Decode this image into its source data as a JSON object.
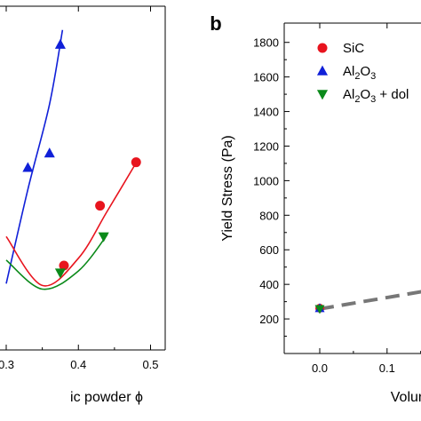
{
  "chart_data": [
    {
      "type": "scatter",
      "panel": "",
      "title": "",
      "xlabel": "ic powder ϕ",
      "ylabel": "",
      "x_ticks": [
        "0.3",
        "0.4",
        "0.5"
      ],
      "series": [
        {
          "name": "SiC",
          "color": "#e8141e",
          "marker": "circle",
          "points": [
            [
              0.38,
              260
            ],
            [
              0.43,
              590
            ],
            [
              0.48,
              830
            ]
          ]
        },
        {
          "name": "Al2O3",
          "color": "#1020d8",
          "marker": "triangle-up",
          "points": [
            [
              0.33,
              800
            ],
            [
              0.36,
              880
            ],
            [
              0.375,
              1480
            ]
          ]
        },
        {
          "name": "Al2O3 + dol",
          "color": "#0b8a1a",
          "marker": "triangle-down",
          "points": [
            [
              0.375,
              220
            ],
            [
              0.435,
              420
            ]
          ]
        }
      ]
    },
    {
      "type": "line",
      "panel": "b",
      "title": "",
      "xlabel": "Volum",
      "ylabel": "Yield Stress (Pa)",
      "ylim": [
        0,
        1900
      ],
      "y_ticks": [
        200,
        400,
        600,
        800,
        1000,
        1200,
        1400,
        1600,
        1800
      ],
      "x_ticks": [
        "0.0",
        "0.1"
      ],
      "legend_position": "top-right",
      "legend": [
        {
          "label": "SiC",
          "color": "#e8141e",
          "marker": "circle"
        },
        {
          "label": "Al",
          "sub": "2",
          "label2": "O",
          "sub2": "3",
          "tail": "",
          "color": "#1020d8",
          "marker": "triangle-up"
        },
        {
          "label": "Al",
          "sub": "2",
          "label2": "O",
          "sub2": "3",
          "tail": " + dol",
          "color": "#0b8a1a",
          "marker": "triangle-down"
        }
      ],
      "series": [
        {
          "name": "SiC",
          "color": "#e8141e",
          "marker": "circle",
          "points": [
            [
              0.0,
              262
            ]
          ]
        },
        {
          "name": "Al2O3",
          "color": "#1020d8",
          "marker": "triangle-up",
          "points": [
            [
              0.0,
              262
            ]
          ]
        },
        {
          "name": "Al2O3 + dol",
          "color": "#0b8a1a",
          "marker": "triangle-down",
          "points": [
            [
              0.0,
              258
            ]
          ]
        }
      ],
      "trend": {
        "color": "#777777",
        "style": "dashed",
        "points": [
          [
            0.0,
            258
          ],
          [
            0.17,
            370
          ]
        ]
      }
    }
  ]
}
